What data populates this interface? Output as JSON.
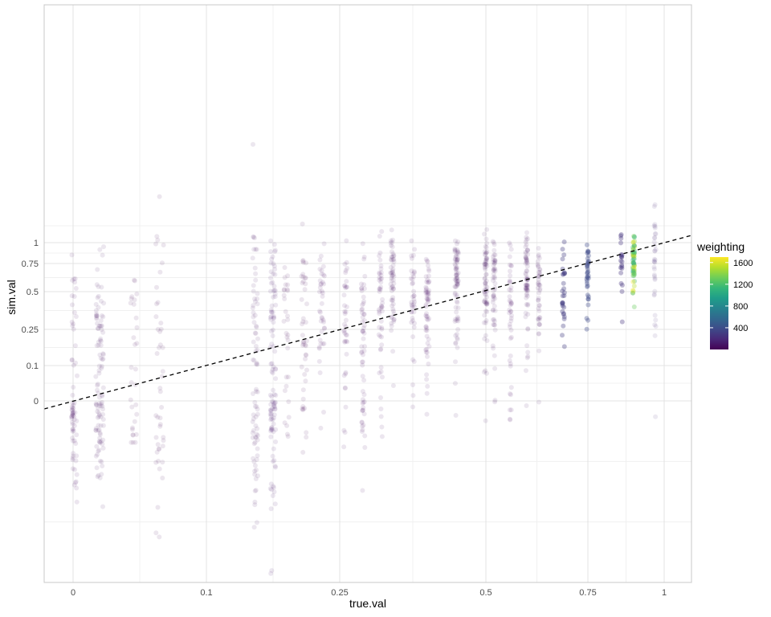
{
  "chart_data": {
    "type": "scatter",
    "title": "",
    "xlabel": "true.val",
    "ylabel": "sim.val",
    "x_scale": "logit-like (nonlinear)",
    "y_scale": "logit-like (nonlinear)",
    "x_ticks": [
      {
        "value": 0,
        "label": "0"
      },
      {
        "value": 0.1,
        "label": "0.1"
      },
      {
        "value": 0.25,
        "label": "0.25"
      },
      {
        "value": 0.5,
        "label": "0.5"
      },
      {
        "value": 0.75,
        "label": "0.75"
      },
      {
        "value": 1,
        "label": "1"
      }
    ],
    "y_ticks": [
      {
        "value": 0,
        "label": "0"
      },
      {
        "value": 0.1,
        "label": "0.1"
      },
      {
        "value": 0.25,
        "label": "0.25"
      },
      {
        "value": 0.5,
        "label": "0.5"
      },
      {
        "value": 0.75,
        "label": "0.75"
      },
      {
        "value": 1,
        "label": "1"
      }
    ],
    "reference_line": {
      "type": "identity",
      "style": "dashed",
      "color": "#000000"
    },
    "legend": {
      "title": "weighting",
      "position": "right",
      "colormap": "viridis",
      "range": [
        0,
        1700
      ],
      "breaks": [
        {
          "value": 400,
          "label": "400"
        },
        {
          "value": 800,
          "label": "800"
        },
        {
          "value": 1200,
          "label": "1200"
        },
        {
          "value": 1600,
          "label": "1600"
        }
      ]
    },
    "point_alpha": 0.1,
    "series": [
      {
        "true_val": 0.0,
        "center": 0.0,
        "spread": 0.7,
        "n": 70,
        "weighting": 60
      },
      {
        "true_val": 0.02,
        "center": 0.0,
        "spread": 0.6,
        "n": 110,
        "weighting": 90
      },
      {
        "true_val": 0.045,
        "center": 0.05,
        "spread": 0.6,
        "n": 30,
        "weighting": 40
      },
      {
        "true_val": 0.065,
        "center": 0.05,
        "spread": 0.9,
        "n": 45,
        "weighting": 40
      },
      {
        "true_val": 0.155,
        "center": 0.12,
        "spread": 0.8,
        "n": 80,
        "weighting": 70
      },
      {
        "true_val": 0.175,
        "center": 0.1,
        "spread": 0.75,
        "n": 110,
        "weighting": 110
      },
      {
        "true_val": 0.19,
        "center": 0.2,
        "spread": 0.5,
        "n": 30,
        "weighting": 40
      },
      {
        "true_val": 0.21,
        "center": 0.25,
        "spread": 0.55,
        "n": 45,
        "weighting": 40
      },
      {
        "true_val": 0.23,
        "center": 0.35,
        "spread": 0.5,
        "n": 40,
        "weighting": 50
      },
      {
        "true_val": 0.26,
        "center": 0.3,
        "spread": 0.5,
        "n": 40,
        "weighting": 50
      },
      {
        "true_val": 0.29,
        "center": 0.2,
        "spread": 0.55,
        "n": 60,
        "weighting": 60
      },
      {
        "true_val": 0.32,
        "center": 0.4,
        "spread": 0.5,
        "n": 50,
        "weighting": 60
      },
      {
        "true_val": 0.34,
        "center": 0.5,
        "spread": 0.45,
        "n": 60,
        "weighting": 70
      },
      {
        "true_val": 0.375,
        "center": 0.45,
        "spread": 0.4,
        "n": 40,
        "weighting": 50
      },
      {
        "true_val": 0.4,
        "center": 0.4,
        "spread": 0.4,
        "n": 60,
        "weighting": 60
      },
      {
        "true_val": 0.45,
        "center": 0.55,
        "spread": 0.45,
        "n": 80,
        "weighting": 80
      },
      {
        "true_val": 0.5,
        "center": 0.6,
        "spread": 0.45,
        "n": 70,
        "weighting": 80
      },
      {
        "true_val": 0.52,
        "center": 0.5,
        "spread": 0.45,
        "n": 55,
        "weighting": 70
      },
      {
        "true_val": 0.56,
        "center": 0.45,
        "spread": 0.45,
        "n": 45,
        "weighting": 60
      },
      {
        "true_val": 0.6,
        "center": 0.6,
        "spread": 0.45,
        "n": 70,
        "weighting": 80
      },
      {
        "true_val": 0.63,
        "center": 0.5,
        "spread": 0.35,
        "n": 45,
        "weighting": 70
      },
      {
        "true_val": 0.69,
        "center": 0.55,
        "spread": 0.35,
        "n": 30,
        "weighting": 300
      },
      {
        "true_val": 0.75,
        "center": 0.6,
        "spread": 0.3,
        "n": 35,
        "weighting": 380
      },
      {
        "true_val": 0.86,
        "center": 0.75,
        "spread": 0.25,
        "n": 20,
        "weighting": 250
      },
      {
        "true_val": 0.9,
        "center": 0.8,
        "spread": 0.3,
        "n": 60,
        "weighting": 1300
      },
      {
        "true_val": 0.97,
        "center": 0.8,
        "spread": 0.55,
        "n": 35,
        "weighting": 200
      }
    ]
  }
}
